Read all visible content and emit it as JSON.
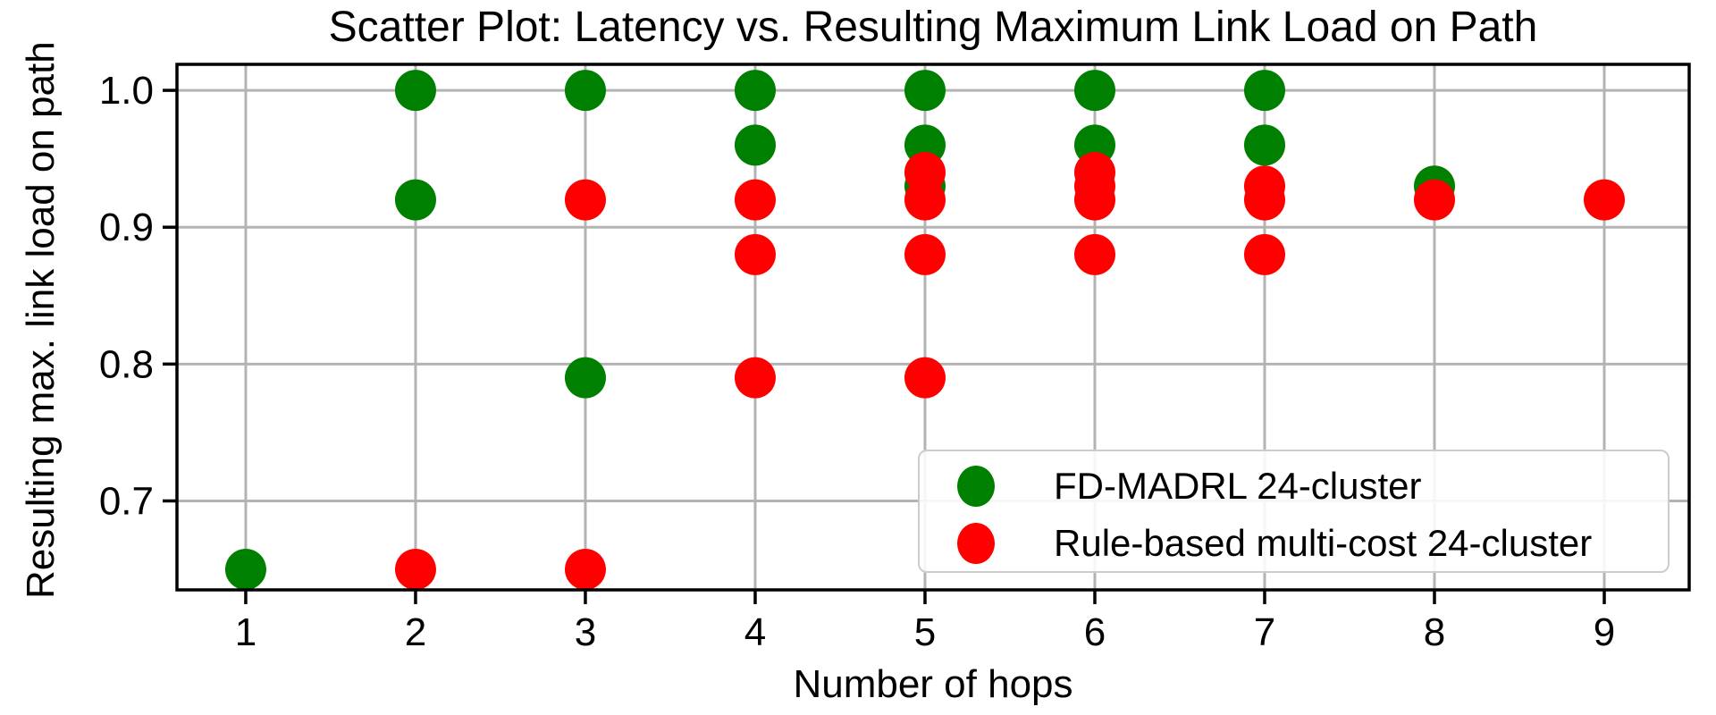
{
  "chart": {
    "title": "Scatter Plot: Latency vs. Resulting Maximum Link Load on Path",
    "xlabel": "Number of hops",
    "ylabel": "Resulting max. link load on path"
  },
  "chart_data": {
    "type": "scatter",
    "title": "Scatter Plot: Latency vs. Resulting Maximum Link Load on Path",
    "xlabel": "Number of hops",
    "ylabel": "Resulting max. link load on path",
    "xlim": [
      0.595,
      9.5
    ],
    "ylim": [
      0.635,
      1.019
    ],
    "xticks": [
      1,
      2,
      3,
      4,
      5,
      6,
      7,
      8,
      9
    ],
    "ytick_labels": [
      "1.0",
      "0.9",
      "0.8",
      "0.7"
    ],
    "ytick_values": [
      1.0,
      0.9,
      0.8,
      0.7
    ],
    "grid": true,
    "legend_position": "lower right",
    "marker_radius_px": 23,
    "series": [
      {
        "name": "FD-MADRL 24-cluster",
        "color": "#008000",
        "points": [
          [
            1,
            0.65
          ],
          [
            2,
            1.0
          ],
          [
            2,
            0.92
          ],
          [
            3,
            1.0
          ],
          [
            3,
            0.79
          ],
          [
            4,
            1.0
          ],
          [
            4,
            0.96
          ],
          [
            5,
            1.0
          ],
          [
            5,
            0.96
          ],
          [
            5,
            0.93
          ],
          [
            6,
            1.0
          ],
          [
            6,
            0.96
          ],
          [
            7,
            1.0
          ],
          [
            7,
            0.96
          ],
          [
            8,
            0.93
          ]
        ]
      },
      {
        "name": "Rule-based multi-cost 24-cluster",
        "color": "#ff0000",
        "points": [
          [
            2,
            0.65
          ],
          [
            3,
            0.92
          ],
          [
            3,
            0.65
          ],
          [
            4,
            0.92
          ],
          [
            4,
            0.88
          ],
          [
            4,
            0.79
          ],
          [
            5,
            0.94
          ],
          [
            5,
            0.92
          ],
          [
            5,
            0.88
          ],
          [
            5,
            0.79
          ],
          [
            6,
            0.94
          ],
          [
            6,
            0.93
          ],
          [
            6,
            0.92
          ],
          [
            6,
            0.88
          ],
          [
            7,
            0.93
          ],
          [
            7,
            0.92
          ],
          [
            7,
            0.88
          ],
          [
            8,
            0.92
          ],
          [
            9,
            0.92
          ]
        ]
      }
    ]
  },
  "colors": {
    "grid": "#b3b3b3",
    "spine": "#000000",
    "tick_text": "#000000",
    "legend_border": "#cccccc",
    "green_series": "#008000",
    "red_series": "#ff0000"
  }
}
